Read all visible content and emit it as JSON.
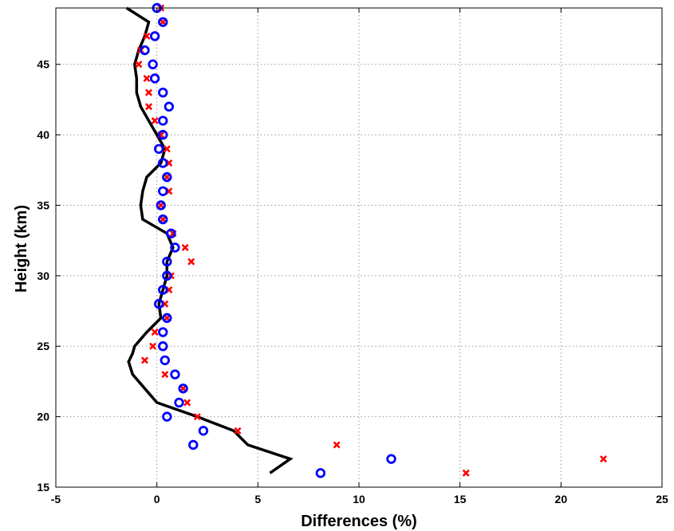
{
  "chart_data": {
    "type": "scatter",
    "xlabel": "Differences (%)",
    "ylabel": "Height (km)",
    "xlim": [
      -5,
      25
    ],
    "ylim": [
      15,
      49
    ],
    "xticks": [
      -5,
      0,
      5,
      10,
      15,
      20,
      25
    ],
    "yticks": [
      15,
      20,
      25,
      30,
      35,
      40,
      45
    ],
    "grid": true,
    "series": [
      {
        "marker": "line",
        "color": "#000000",
        "points": [
          [
            5.6,
            16
          ],
          [
            6.6,
            17
          ],
          [
            4.5,
            18
          ],
          [
            3.8,
            19
          ],
          [
            2.0,
            20
          ],
          [
            0.0,
            21
          ],
          [
            -0.6,
            22
          ],
          [
            -1.2,
            23
          ],
          [
            -1.4,
            23.9
          ],
          [
            -1.2,
            24.5
          ],
          [
            -1.1,
            25
          ],
          [
            -0.5,
            26
          ],
          [
            0.2,
            27
          ],
          [
            0.1,
            28
          ],
          [
            0.3,
            29
          ],
          [
            0.5,
            30
          ],
          [
            0.5,
            31
          ],
          [
            0.8,
            32
          ],
          [
            0.5,
            33
          ],
          [
            -0.7,
            34
          ],
          [
            -0.8,
            35
          ],
          [
            -0.7,
            36
          ],
          [
            -0.5,
            37
          ],
          [
            0.2,
            38
          ],
          [
            0.4,
            39
          ],
          [
            0.0,
            40
          ],
          [
            -0.4,
            41
          ],
          [
            -0.8,
            42
          ],
          [
            -1.0,
            43
          ],
          [
            -1.0,
            44
          ],
          [
            -1.1,
            45
          ],
          [
            -0.9,
            46
          ],
          [
            -0.6,
            47
          ],
          [
            -0.4,
            48
          ],
          [
            -1.5,
            49
          ]
        ]
      },
      {
        "marker": "x",
        "color": "#ff0000",
        "points": [
          [
            15.3,
            16
          ],
          [
            22.1,
            17
          ],
          [
            8.9,
            18
          ],
          [
            4.0,
            19
          ],
          [
            2.0,
            20
          ],
          [
            1.5,
            21
          ],
          [
            1.3,
            22
          ],
          [
            0.4,
            23
          ],
          [
            -0.6,
            24
          ],
          [
            -0.2,
            25
          ],
          [
            -0.1,
            26
          ],
          [
            0.5,
            27
          ],
          [
            0.4,
            28
          ],
          [
            0.6,
            29
          ],
          [
            0.7,
            30
          ],
          [
            1.7,
            31
          ],
          [
            1.4,
            32
          ],
          [
            0.8,
            33
          ],
          [
            0.3,
            34
          ],
          [
            0.2,
            35
          ],
          [
            0.6,
            36
          ],
          [
            0.5,
            37
          ],
          [
            0.6,
            38
          ],
          [
            0.5,
            39
          ],
          [
            0.2,
            40
          ],
          [
            -0.1,
            41
          ],
          [
            -0.4,
            42
          ],
          [
            -0.4,
            43
          ],
          [
            -0.5,
            44
          ],
          [
            -0.9,
            45
          ],
          [
            -0.8,
            46
          ],
          [
            -0.5,
            47
          ],
          [
            0.3,
            48
          ],
          [
            0.2,
            49
          ]
        ]
      },
      {
        "marker": "o",
        "color": "#0000ff",
        "points": [
          [
            8.1,
            16
          ],
          [
            11.6,
            17
          ],
          [
            1.8,
            18
          ],
          [
            2.3,
            19
          ],
          [
            0.5,
            20
          ],
          [
            1.1,
            21
          ],
          [
            1.3,
            22
          ],
          [
            0.9,
            23
          ],
          [
            0.4,
            24
          ],
          [
            0.3,
            25
          ],
          [
            0.3,
            26
          ],
          [
            0.5,
            27
          ],
          [
            0.1,
            28
          ],
          [
            0.3,
            29
          ],
          [
            0.5,
            30
          ],
          [
            0.5,
            31
          ],
          [
            0.9,
            32
          ],
          [
            0.7,
            33
          ],
          [
            0.3,
            34
          ],
          [
            0.2,
            35
          ],
          [
            0.3,
            36
          ],
          [
            0.5,
            37
          ],
          [
            0.3,
            38
          ],
          [
            0.1,
            39
          ],
          [
            0.3,
            40
          ],
          [
            0.3,
            41
          ],
          [
            0.6,
            42
          ],
          [
            0.3,
            43
          ],
          [
            -0.1,
            44
          ],
          [
            -0.2,
            45
          ],
          [
            -0.6,
            46
          ],
          [
            -0.1,
            47
          ],
          [
            0.3,
            48
          ],
          [
            0.0,
            49
          ]
        ]
      }
    ]
  }
}
